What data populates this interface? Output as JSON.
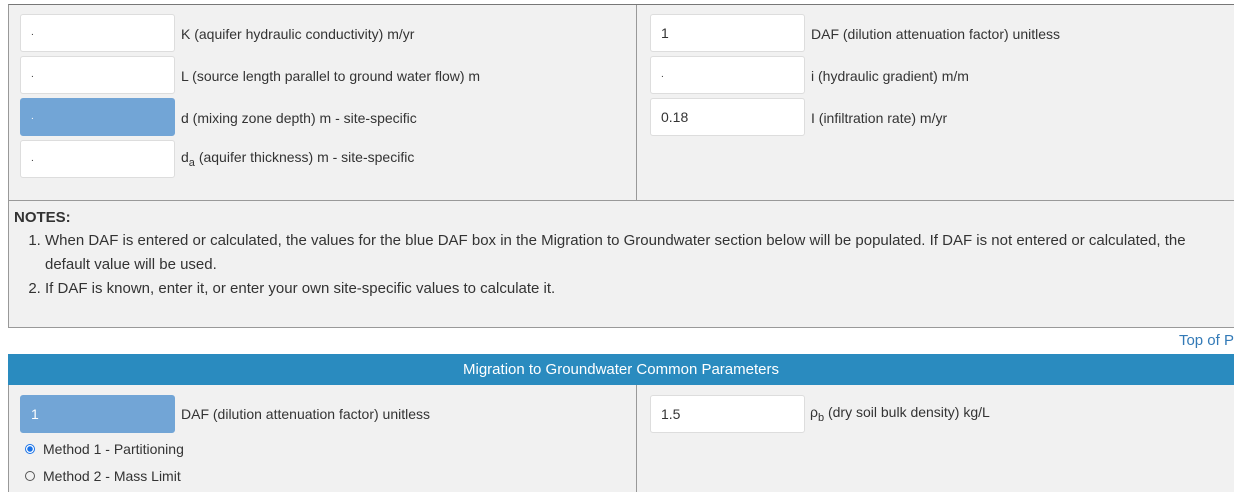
{
  "top_section": {
    "left_fields": [
      {
        "value": ".",
        "label": "K (aquifer hydraulic conductivity) m/yr"
      },
      {
        "value": ".",
        "label": "L (source length parallel to ground water flow) m"
      },
      {
        "value": ".",
        "label": "d (mixing zone depth) m - site-specific"
      },
      {
        "value": ".",
        "label": "d",
        "subscript": "a",
        "suffix": "(aquifer thickness) m - site-specific"
      }
    ],
    "right_fields": [
      {
        "value": "1",
        "label": "DAF (dilution attenuation factor) unitless"
      },
      {
        "value": ".",
        "label": "i (hydraulic gradient) m/m"
      },
      {
        "value": "0.18",
        "label": "I (infiltration rate) m/yr"
      }
    ]
  },
  "notes": {
    "title": "NOTES:",
    "items": [
      "When DAF is entered or calculated, the values for the blue DAF box in the Migration to Groundwater section below will be populated. If DAF is not entered or calculated, the default value will be used.",
      "If DAF is known, enter it, or enter your own site-specific values to calculate it."
    ]
  },
  "top_link": "Top of P",
  "common_parameters": {
    "title": "Migration to Groundwater Common Parameters",
    "daf": {
      "value": "1",
      "label": "DAF (dilution attenuation factor) unitless"
    },
    "methods": [
      {
        "label": "Method 1 - Partitioning",
        "selected": true
      },
      {
        "label": "Method 2 - Mass Limit",
        "selected": false
      }
    ],
    "bulk_density": {
      "value": "1.5",
      "symbol": "ρ",
      "subscript": "b",
      "suffix": "(dry soil bulk density) kg/L"
    }
  }
}
